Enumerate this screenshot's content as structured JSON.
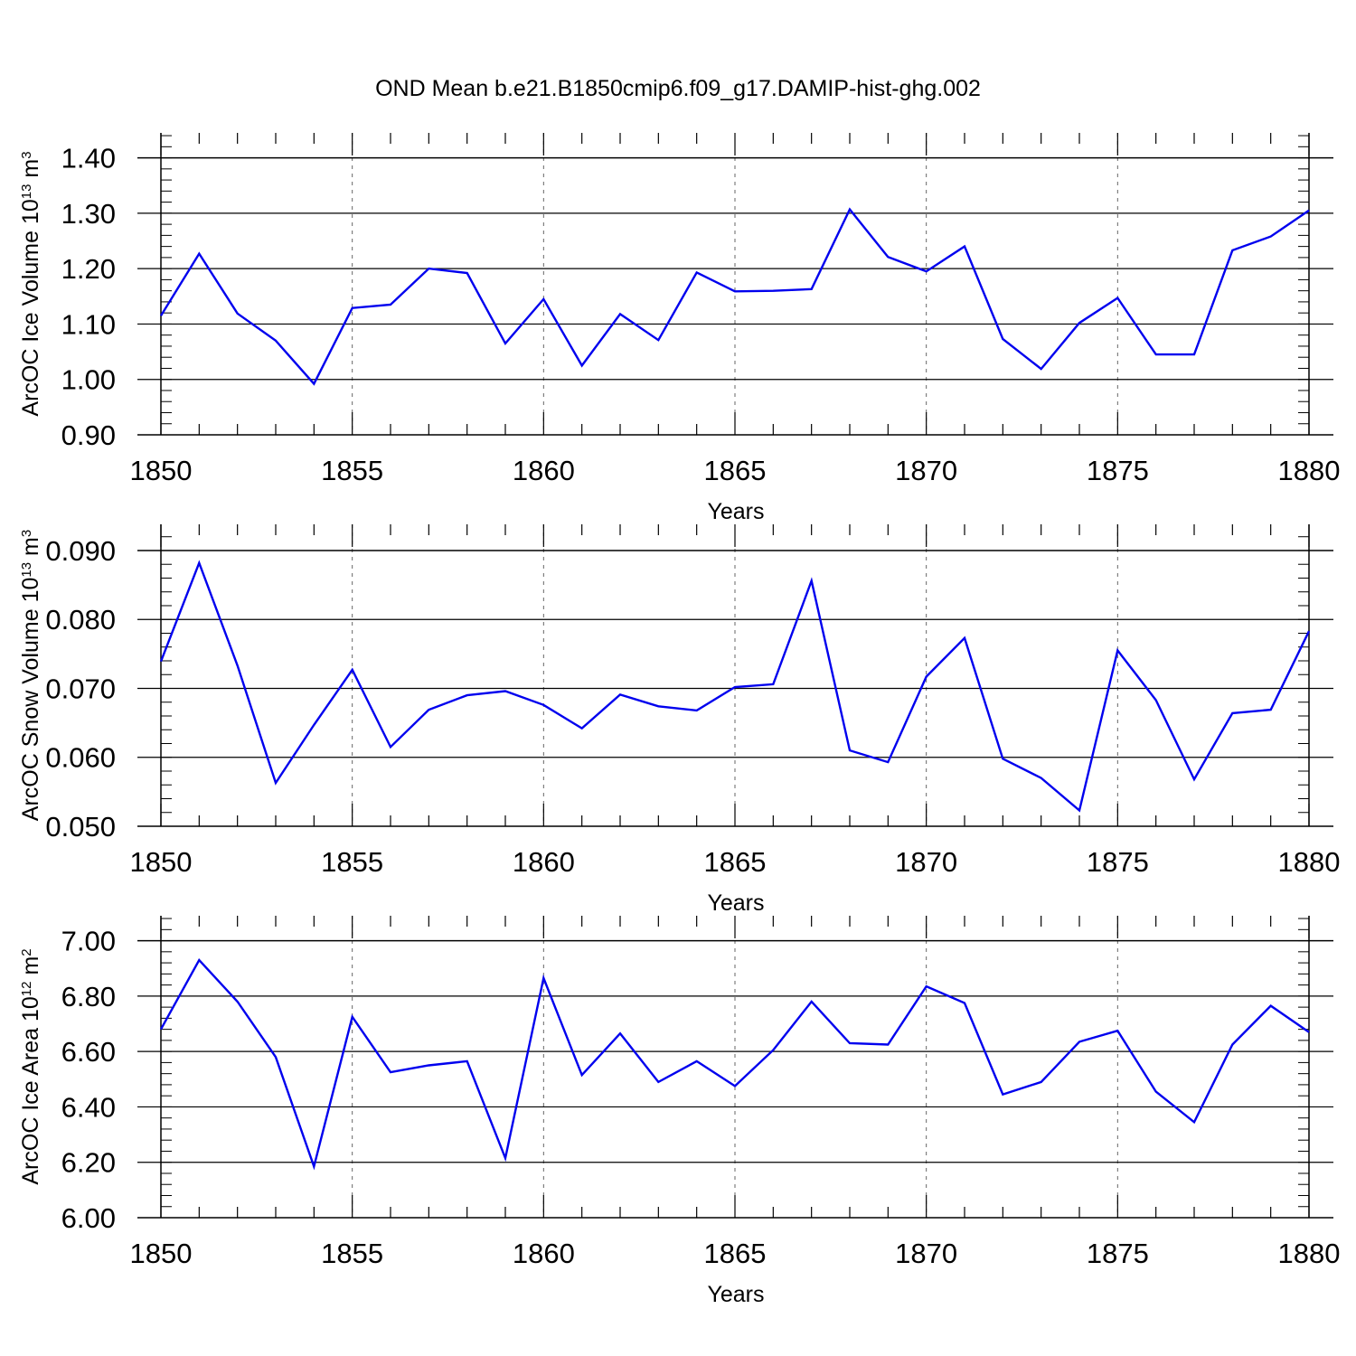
{
  "title": "OND Mean b.e21.B1850cmip6.f09_g17.DAMIP-hist-ghg.002",
  "colors": {
    "series": "#0000ee",
    "axes": "#000000",
    "grid": "#666666"
  },
  "chart_data": [
    {
      "type": "line",
      "xlabel": "Years",
      "ylabel": {
        "text": "ArcOC Ice Volume 10",
        "sup": "13",
        "unit": " m",
        "unit_sup": "3"
      },
      "xlim": [
        1850,
        1880
      ],
      "ylim": [
        0.9,
        1.445
      ],
      "x_ticks": [
        1850,
        1855,
        1860,
        1865,
        1870,
        1875,
        1880
      ],
      "x_tick_labels": [
        "1850",
        "1855",
        "1860",
        "1865",
        "1870",
        "1875",
        "1880"
      ],
      "y_ticks": [
        0.9,
        1.0,
        1.1,
        1.2,
        1.3,
        1.4
      ],
      "y_tick_labels": [
        "0.90",
        "1.00",
        "1.10",
        "1.20",
        "1.30",
        "1.40"
      ],
      "grid": "vertical dashed at major x ticks",
      "series": [
        {
          "x": [
            1850,
            1851,
            1852,
            1853,
            1854,
            1855,
            1856,
            1857,
            1858,
            1859,
            1860,
            1861,
            1862,
            1863,
            1864,
            1865,
            1866,
            1867,
            1868,
            1869,
            1870,
            1871,
            1872,
            1873,
            1874,
            1875,
            1876,
            1877,
            1878,
            1879,
            1880
          ],
          "values": [
            1.115,
            1.227,
            1.119,
            1.07,
            0.992,
            1.129,
            1.135,
            1.2,
            1.192,
            1.065,
            1.145,
            1.025,
            1.118,
            1.071,
            1.193,
            1.159,
            1.16,
            1.163,
            1.307,
            1.221,
            1.195,
            1.24,
            1.073,
            1.019,
            1.102,
            1.147,
            1.045,
            1.045,
            1.233,
            1.258,
            1.305
          ]
        }
      ]
    },
    {
      "type": "line",
      "xlabel": "Years",
      "ylabel": {
        "text": "ArcOC Snow Volume 10",
        "sup": "13",
        "unit": " m",
        "unit_sup": "3"
      },
      "xlim": [
        1850,
        1880
      ],
      "ylim": [
        0.05,
        0.0938
      ],
      "x_ticks": [
        1850,
        1855,
        1860,
        1865,
        1870,
        1875,
        1880
      ],
      "x_tick_labels": [
        "1850",
        "1855",
        "1860",
        "1865",
        "1870",
        "1875",
        "1880"
      ],
      "y_ticks": [
        0.05,
        0.06,
        0.07,
        0.08,
        0.09
      ],
      "y_tick_labels": [
        "0.050",
        "0.060",
        "0.070",
        "0.080",
        "0.090"
      ],
      "grid": "vertical dashed at major x ticks",
      "series": [
        {
          "x": [
            1850,
            1851,
            1852,
            1853,
            1854,
            1855,
            1856,
            1857,
            1858,
            1859,
            1860,
            1861,
            1862,
            1863,
            1864,
            1865,
            1866,
            1867,
            1868,
            1869,
            1870,
            1871,
            1872,
            1873,
            1874,
            1875,
            1876,
            1877,
            1878,
            1879,
            1880
          ],
          "values": [
            0.0739,
            0.0882,
            0.0733,
            0.0563,
            0.0647,
            0.0727,
            0.0615,
            0.0669,
            0.069,
            0.0696,
            0.0676,
            0.0642,
            0.0691,
            0.0674,
            0.0668,
            0.0702,
            0.0706,
            0.0856,
            0.061,
            0.0593,
            0.0717,
            0.0773,
            0.0598,
            0.057,
            0.0523,
            0.0755,
            0.0683,
            0.0568,
            0.0664,
            0.0669,
            0.0783
          ]
        }
      ]
    },
    {
      "type": "line",
      "xlabel": "Years",
      "ylabel": {
        "text": "ArcOC Ice Area 10",
        "sup": "12",
        "unit": " m",
        "unit_sup": "2"
      },
      "xlim": [
        1850,
        1880
      ],
      "ylim": [
        6.0,
        7.09
      ],
      "x_ticks": [
        1850,
        1855,
        1860,
        1865,
        1870,
        1875,
        1880
      ],
      "x_tick_labels": [
        "1850",
        "1855",
        "1860",
        "1865",
        "1870",
        "1875",
        "1880"
      ],
      "y_ticks": [
        6.0,
        6.2,
        6.4,
        6.6,
        6.8,
        7.0
      ],
      "y_tick_labels": [
        "6.00",
        "6.20",
        "6.40",
        "6.60",
        "6.80",
        "7.00"
      ],
      "grid": "vertical dashed at major x ticks",
      "series": [
        {
          "x": [
            1850,
            1851,
            1852,
            1853,
            1854,
            1855,
            1856,
            1857,
            1858,
            1859,
            1860,
            1861,
            1862,
            1863,
            1864,
            1865,
            1866,
            1867,
            1868,
            1869,
            1870,
            1871,
            1872,
            1873,
            1874,
            1875,
            1876,
            1877,
            1878,
            1879,
            1880
          ],
          "values": [
            6.68,
            6.93,
            6.78,
            6.58,
            6.185,
            6.725,
            6.525,
            6.55,
            6.565,
            6.215,
            6.865,
            6.515,
            6.665,
            6.49,
            6.565,
            6.475,
            6.605,
            6.78,
            6.63,
            6.625,
            6.835,
            6.775,
            6.445,
            6.49,
            6.635,
            6.675,
            6.455,
            6.345,
            6.625,
            6.765,
            6.67
          ]
        }
      ]
    }
  ]
}
